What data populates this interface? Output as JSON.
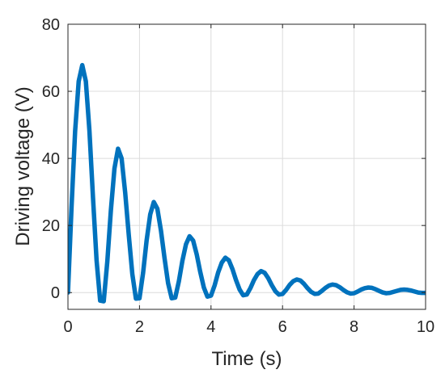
{
  "chart_data": {
    "type": "line",
    "title": "",
    "xlabel": "Time (s)",
    "ylabel": "Driving voltage (V)",
    "xlim": [
      0,
      10
    ],
    "ylim": [
      -5,
      80
    ],
    "xticks": [
      0,
      2,
      4,
      6,
      8,
      10
    ],
    "yticks": [
      0,
      20,
      40,
      60,
      80
    ],
    "xtick_labels": [
      "0",
      "2",
      "4",
      "6",
      "8",
      "10"
    ],
    "ytick_labels": [
      "0",
      "20",
      "40",
      "60",
      "80"
    ],
    "grid": true,
    "legend": "none",
    "series": [
      {
        "color": "#0072BD",
        "x": [
          0,
          0.1,
          0.2,
          0.3,
          0.4,
          0.5,
          0.6,
          0.7,
          0.8,
          0.9,
          1.0,
          1.1,
          1.2,
          1.3,
          1.4,
          1.5,
          1.6,
          1.7,
          1.8,
          1.9,
          2.0,
          2.1,
          2.2,
          2.3,
          2.4,
          2.5,
          2.6,
          2.7,
          2.8,
          2.9,
          3.0,
          3.1,
          3.2,
          3.3,
          3.4,
          3.5,
          3.6,
          3.7,
          3.8,
          3.9,
          4.0,
          4.1,
          4.2,
          4.3,
          4.4,
          4.5,
          4.6,
          4.7,
          4.8,
          4.9,
          5.0,
          5.1,
          5.2,
          5.3,
          5.4,
          5.5,
          5.6,
          5.7,
          5.8,
          5.9,
          6.0,
          6.1,
          6.2,
          6.3,
          6.4,
          6.5,
          6.6,
          6.7,
          6.8,
          6.9,
          7.0,
          7.1,
          7.2,
          7.3,
          7.4,
          7.5,
          7.6,
          7.7,
          7.8,
          7.9,
          8.0,
          8.1,
          8.2,
          8.3,
          8.4,
          8.5,
          8.6,
          8.7,
          8.8,
          8.9,
          9.0,
          9.1,
          9.2,
          9.3,
          9.4,
          9.5,
          9.6,
          9.7,
          9.8,
          9.9,
          10.0
        ],
        "y": [
          0,
          25.5,
          48.1,
          63.0,
          67.8,
          63.0,
          48.3,
          28.3,
          9.6,
          -2.4,
          -2.6,
          9.2,
          24.5,
          37.0,
          42.9,
          40.0,
          29.8,
          17.2,
          5.5,
          -1.8,
          -1.7,
          5.8,
          15.6,
          23.3,
          27.0,
          25.0,
          18.5,
          10.3,
          2.8,
          -1.7,
          -1.5,
          3.3,
          9.5,
          14.4,
          16.8,
          15.5,
          11.4,
          6.1,
          1.5,
          -1.2,
          -0.9,
          2.1,
          6.0,
          8.9,
          10.4,
          9.6,
          7.0,
          3.7,
          0.9,
          -0.8,
          -0.6,
          1.3,
          3.7,
          5.5,
          6.4,
          5.9,
          4.3,
          2.2,
          0.4,
          -0.6,
          -0.4,
          0.8,
          2.3,
          3.4,
          3.9,
          3.6,
          2.6,
          1.3,
          0.2,
          -0.4,
          -0.3,
          0.5,
          1.4,
          2.1,
          2.4,
          2.2,
          1.6,
          0.8,
          0.1,
          -0.3,
          -0.2,
          0.3,
          0.9,
          1.3,
          1.5,
          1.4,
          1.0,
          0.5,
          0.05,
          -0.2,
          -0.1,
          0.2,
          0.5,
          0.8,
          0.9,
          0.8,
          0.6,
          0.3,
          0.0,
          -0.1,
          -0.1
        ]
      }
    ]
  }
}
